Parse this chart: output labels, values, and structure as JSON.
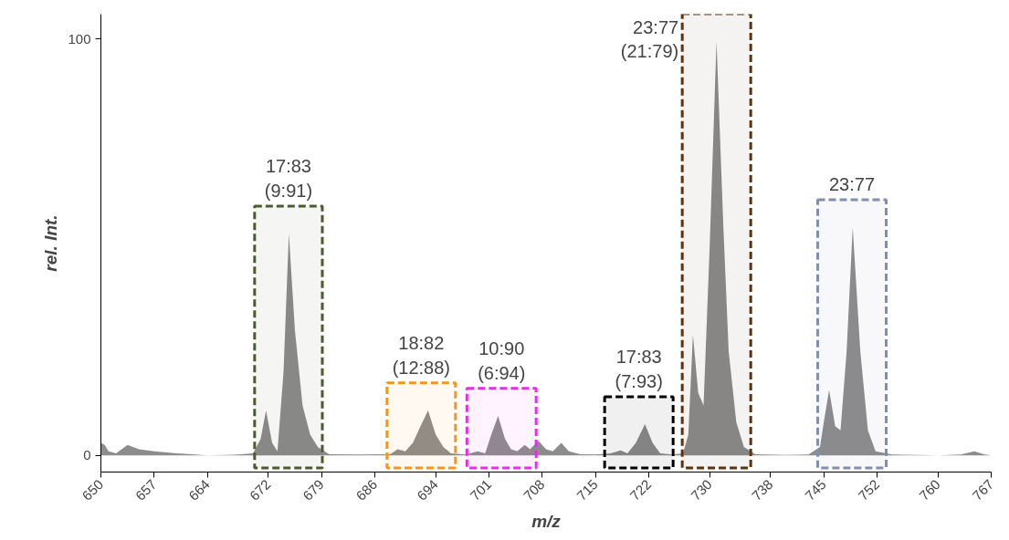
{
  "chart_data": {
    "type": "area",
    "xlabel": "m/z",
    "ylabel": "rel. Int.",
    "x": [
      650,
      650.5,
      651,
      652,
      653.5,
      655,
      657,
      660,
      662,
      664,
      668,
      670,
      671,
      671.7,
      672.5,
      673.2,
      674,
      674.7,
      675.5,
      676.5,
      677.5,
      678.5,
      680,
      684,
      688,
      689,
      690,
      691,
      692,
      693,
      694,
      695,
      696,
      698,
      699.5,
      700.5,
      701.3,
      702.2,
      703.1,
      703.9,
      704.7,
      705.7,
      706.4,
      707.5,
      708.5,
      709.4,
      710.5,
      711.5,
      713,
      715,
      717,
      718.3,
      719.2,
      720.3,
      721.5,
      722.5,
      723.5,
      725,
      726.5,
      727.2,
      727.8,
      728.5,
      729.2,
      730,
      730.9,
      731.8,
      732.5,
      733.5,
      734.5,
      736,
      740,
      743,
      744.5,
      745,
      745.7,
      746.5,
      747.2,
      748,
      748.8,
      749.8,
      750.8,
      751.8,
      754,
      760,
      763,
      764.8,
      766,
      767
    ],
    "values": [
      3,
      2.5,
      1,
      0.5,
      2.5,
      1.5,
      1,
      0.5,
      0.3,
      0,
      0.2,
      0.5,
      4,
      10.8,
      3,
      1,
      20,
      53.3,
      30,
      12,
      5,
      2,
      0.3,
      0.2,
      0.3,
      1.5,
      1,
      3,
      7,
      10.8,
      5,
      2,
      0.5,
      0.2,
      1,
      0.5,
      5,
      9.5,
      4,
      1.5,
      1,
      2.5,
      1.5,
      3.5,
      1.5,
      1,
      3,
      1,
      0.3,
      0.2,
      0.5,
      1.2,
      0.5,
      3,
      7.5,
      3,
      0.5,
      0.2,
      0.5,
      5,
      29,
      15,
      12,
      50,
      99.5,
      55,
      25,
      8,
      2,
      0.3,
      0.1,
      0.2,
      2,
      8,
      15.7,
      7,
      6,
      25,
      54.8,
      25,
      6,
      1,
      0.2,
      0,
      0.2,
      1,
      0.3,
      0
    ],
    "color": "#8c8c8c",
    "xlim": [
      650,
      767
    ],
    "xticks": [
      650,
      657,
      664,
      672,
      679,
      686,
      694,
      701,
      708,
      715,
      722,
      730,
      738,
      745,
      752,
      760,
      767
    ],
    "ylim": [
      -4,
      106
    ],
    "yticks": [
      0,
      100
    ],
    "grid": false,
    "bands": [
      {
        "axis": "x",
        "from": 670.2,
        "to": 679.1,
        "color": "#4d5a2e",
        "label": "17:83\n(9:91)"
      },
      {
        "axis": "x",
        "from": 687.6,
        "to": 696.6,
        "color": "#f7941d",
        "label": "18:82\n(12:88)"
      },
      {
        "axis": "x",
        "from": 698.1,
        "to": 707.2,
        "color": "#e62ee6",
        "label": "10:90\n(6:94)"
      },
      {
        "axis": "x",
        "from": 716.2,
        "to": 725.2,
        "color": "#000000",
        "label": "17:83\n(7:93)"
      },
      {
        "axis": "x",
        "from": 726.4,
        "to": 735.4,
        "color": "#5c3310",
        "label": "23:77\n(21:79)"
      },
      {
        "axis": "x",
        "from": 744.2,
        "to": 753.2,
        "color": "#8090aa",
        "label": "23:77"
      }
    ]
  }
}
